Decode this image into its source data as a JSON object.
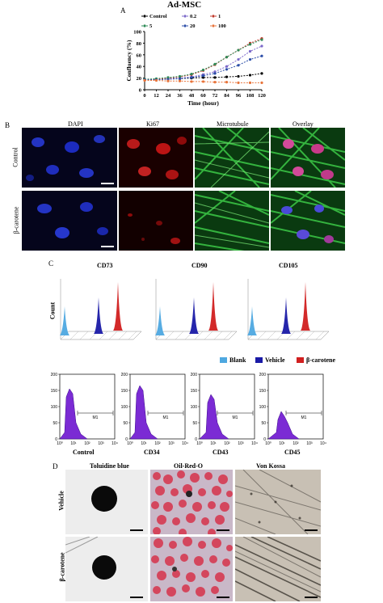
{
  "panelA": {
    "letter": "A",
    "title": "Ad-MSC",
    "chart_data": {
      "type": "line",
      "title": "Ad-MSC",
      "xlabel": "Time (hour)",
      "ylabel": "Confluency (%)",
      "x": [
        0,
        12,
        24,
        36,
        48,
        60,
        72,
        84,
        96,
        108,
        120
      ],
      "xticks": [
        "0",
        "12",
        "24",
        "36",
        "48",
        "60",
        "72",
        "84",
        "96",
        "108",
        "120"
      ],
      "yticks": [
        "0",
        "20",
        "40",
        "60",
        "80",
        "100"
      ],
      "xlim": [
        0,
        120
      ],
      "ylim": [
        0,
        100
      ],
      "legend": "top",
      "series": [
        {
          "name": "Control",
          "color": "#000000",
          "values": [
            18,
            18,
            19,
            19,
            20,
            21,
            21,
            22,
            23,
            25,
            28
          ]
        },
        {
          "name": "0.2",
          "color": "#7b68c9",
          "values": [
            17,
            18,
            19,
            20,
            22,
            26,
            31,
            40,
            52,
            66,
            75
          ]
        },
        {
          "name": "1",
          "color": "#c0392b",
          "values": [
            17,
            18,
            20,
            22,
            26,
            33,
            43,
            56,
            68,
            80,
            88
          ]
        },
        {
          "name": "5",
          "color": "#2e8b57",
          "values": [
            18,
            19,
            21,
            23,
            27,
            34,
            44,
            56,
            68,
            78,
            86
          ]
        },
        {
          "name": "20",
          "color": "#2c4ea8",
          "values": [
            17,
            17,
            18,
            19,
            21,
            24,
            28,
            35,
            42,
            52,
            58
          ]
        },
        {
          "name": "100",
          "color": "#e8743b",
          "values": [
            16,
            16,
            15,
            15,
            14,
            14,
            13,
            13,
            12,
            12,
            12
          ]
        }
      ]
    }
  },
  "panelB": {
    "letter": "B",
    "cols": [
      "DAPI",
      "Ki67",
      "Microtubule",
      "Overlay"
    ],
    "rows": [
      "Control",
      "β-carotene"
    ]
  },
  "panelC": {
    "letter": "C",
    "markers": [
      "CD73",
      "CD90",
      "CD105"
    ],
    "count_label": "Count",
    "legend": [
      {
        "label": "Blank",
        "color": "#4ea8e0"
      },
      {
        "label": "Vehicle",
        "color": "#1a1aa6"
      },
      {
        "label": "β-carotene",
        "color": "#d11f1f"
      }
    ],
    "histograms": [
      {
        "label": "Control"
      },
      {
        "label": "CD34"
      },
      {
        "label": "CD43"
      },
      {
        "label": "CD45"
      }
    ],
    "hist_yticks": [
      "200",
      "150",
      "100",
      "50",
      "0"
    ],
    "gate_label": "M1"
  },
  "panelD": {
    "letter": "D",
    "cols": [
      "Toluidine blue",
      "Oil-Red-O",
      "Von Kossa"
    ],
    "rows": [
      "Vehicle",
      "β-carotene"
    ]
  }
}
